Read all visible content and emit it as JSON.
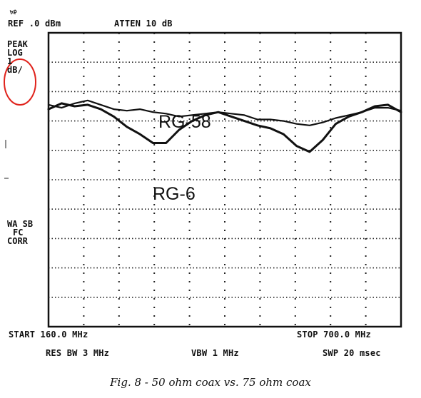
{
  "header": {
    "ref": "REF .0 dBm",
    "atten": "ATTEN 10 dB",
    "logo": "hp"
  },
  "sidebar": {
    "peak": "PEAK",
    "log": "LOG",
    "scale_value": "1",
    "scale_unit": "dB/",
    "wa_sb": "WA SB",
    "fc": "FC",
    "corr": "CORR"
  },
  "footer": {
    "start": "START 160.0 MHz",
    "stop": "STOP 700.0 MHz",
    "res_bw": "RES BW 3 MHz",
    "vbw": "VBW 1 MHz",
    "swp": "SWP 20 msec"
  },
  "annotations": {
    "rg58": "RG-58",
    "rg6": "RG-6"
  },
  "caption": "Fig. 8 - 50 ohm coax vs. 75 ohm coax",
  "colors": {
    "trace": "#111111",
    "grid": "#222222",
    "highlight_circle": "#e0231c"
  },
  "chart_data": {
    "type": "line",
    "xlabel": "",
    "ylabel": "",
    "xlim": [
      160,
      700
    ],
    "ylim": [
      -10,
      0
    ],
    "x_unit": "MHz",
    "y_unit": "dB",
    "grid": true,
    "series": [
      {
        "name": "RG-58",
        "x": [
          160,
          180,
          200,
          220,
          240,
          260,
          280,
          300,
          320,
          340,
          360,
          380,
          400,
          420,
          440,
          460,
          480,
          500,
          520,
          540,
          560,
          580,
          600,
          620,
          640,
          660,
          680,
          700
        ],
        "y": [
          -2.45,
          -2.55,
          -2.4,
          -2.3,
          -2.45,
          -2.6,
          -2.65,
          -2.6,
          -2.7,
          -2.75,
          -2.85,
          -2.8,
          -2.75,
          -2.7,
          -2.75,
          -2.8,
          -2.95,
          -2.95,
          -3.0,
          -3.1,
          -3.15,
          -3.05,
          -2.9,
          -2.8,
          -2.7,
          -2.55,
          -2.55,
          -2.65
        ]
      },
      {
        "name": "RG-6",
        "x": [
          160,
          180,
          200,
          220,
          240,
          260,
          280,
          300,
          320,
          340,
          360,
          380,
          400,
          420,
          440,
          460,
          480,
          500,
          520,
          540,
          560,
          580,
          600,
          620,
          640,
          660,
          680,
          700
        ],
        "y": [
          -2.6,
          -2.4,
          -2.5,
          -2.45,
          -2.6,
          -2.85,
          -3.2,
          -3.45,
          -3.75,
          -3.75,
          -3.3,
          -3.0,
          -2.8,
          -2.7,
          -2.85,
          -3.0,
          -3.15,
          -3.25,
          -3.45,
          -3.85,
          -4.05,
          -3.65,
          -3.1,
          -2.85,
          -2.7,
          -2.5,
          -2.45,
          -2.7
        ]
      }
    ]
  }
}
